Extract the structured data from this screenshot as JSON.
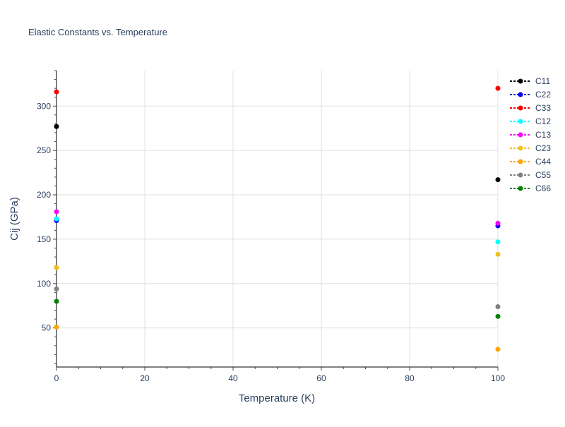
{
  "chart_data": {
    "type": "scatter",
    "title": "Elastic Constants vs. Temperature",
    "xlabel": "Temperature (K)",
    "ylabel": "Cij (GPa)",
    "xlim": [
      0,
      100
    ],
    "ylim": [
      6,
      340
    ],
    "xticks": [
      0,
      20,
      40,
      60,
      80,
      100
    ],
    "yticks": [
      50,
      100,
      150,
      200,
      250,
      300
    ],
    "grid": true,
    "legend": "right",
    "x": [
      0,
      100
    ],
    "series": [
      {
        "name": "C11",
        "color": "#000000",
        "values": [
          277,
          217
        ]
      },
      {
        "name": "C22",
        "color": "#0000ff",
        "values": [
          171,
          165
        ]
      },
      {
        "name": "C33",
        "color": "#ff0000",
        "values": [
          316,
          320
        ]
      },
      {
        "name": "C12",
        "color": "#00ffff",
        "values": [
          173,
          147
        ]
      },
      {
        "name": "C13",
        "color": "#ff00ff",
        "values": [
          181,
          168
        ]
      },
      {
        "name": "C23",
        "color": "#f0c020",
        "values": [
          118,
          133
        ]
      },
      {
        "name": "C44",
        "color": "#ffa500",
        "values": [
          51,
          26
        ]
      },
      {
        "name": "C55",
        "color": "#808080",
        "values": [
          94,
          74
        ]
      },
      {
        "name": "C66",
        "color": "#008000",
        "values": [
          80,
          63
        ]
      }
    ]
  }
}
